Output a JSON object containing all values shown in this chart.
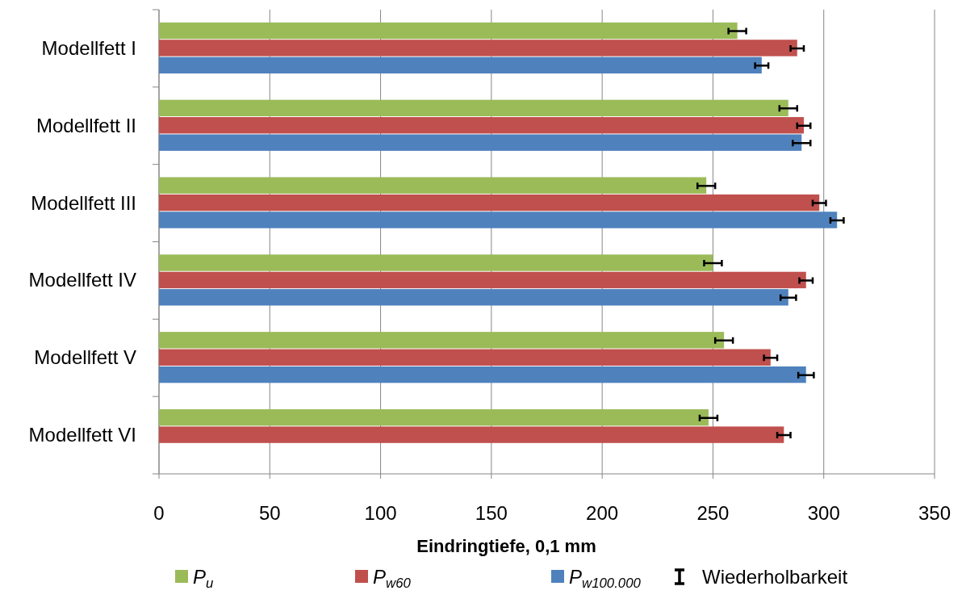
{
  "chart_data": {
    "type": "bar",
    "orientation": "horizontal",
    "xlabel": "Eindringtiefe, 0,1 mm",
    "categories": [
      "Modellfett I",
      "Modellfett II",
      "Modellfett III",
      "Modellfett IV",
      "Modellfett V",
      "Modellfett VI"
    ],
    "series": [
      {
        "name": "P$_{u}$",
        "color": "#9bbb59",
        "values": [
          261,
          284,
          247,
          250,
          255,
          248
        ],
        "errors": [
          4,
          4,
          4,
          4,
          4,
          4
        ]
      },
      {
        "name": "P$_{w60}$",
        "color": "#c0504d",
        "values": [
          288,
          291,
          298,
          292,
          276,
          282
        ],
        "errors": [
          3,
          3,
          3,
          3,
          3,
          3
        ]
      },
      {
        "name": "P$_{w100.000}$",
        "color": "#4f81bd",
        "values": [
          272,
          290,
          306,
          284,
          292,
          null
        ],
        "errors": [
          3,
          4,
          3,
          3.5,
          3.5,
          null
        ]
      }
    ],
    "xlim": [
      0,
      350
    ],
    "xticks": [
      0,
      50,
      100,
      150,
      200,
      250,
      300,
      350
    ],
    "grid": "x",
    "legend": "bottom",
    "annotations": [
      "Wiederholbarkeit"
    ]
  }
}
